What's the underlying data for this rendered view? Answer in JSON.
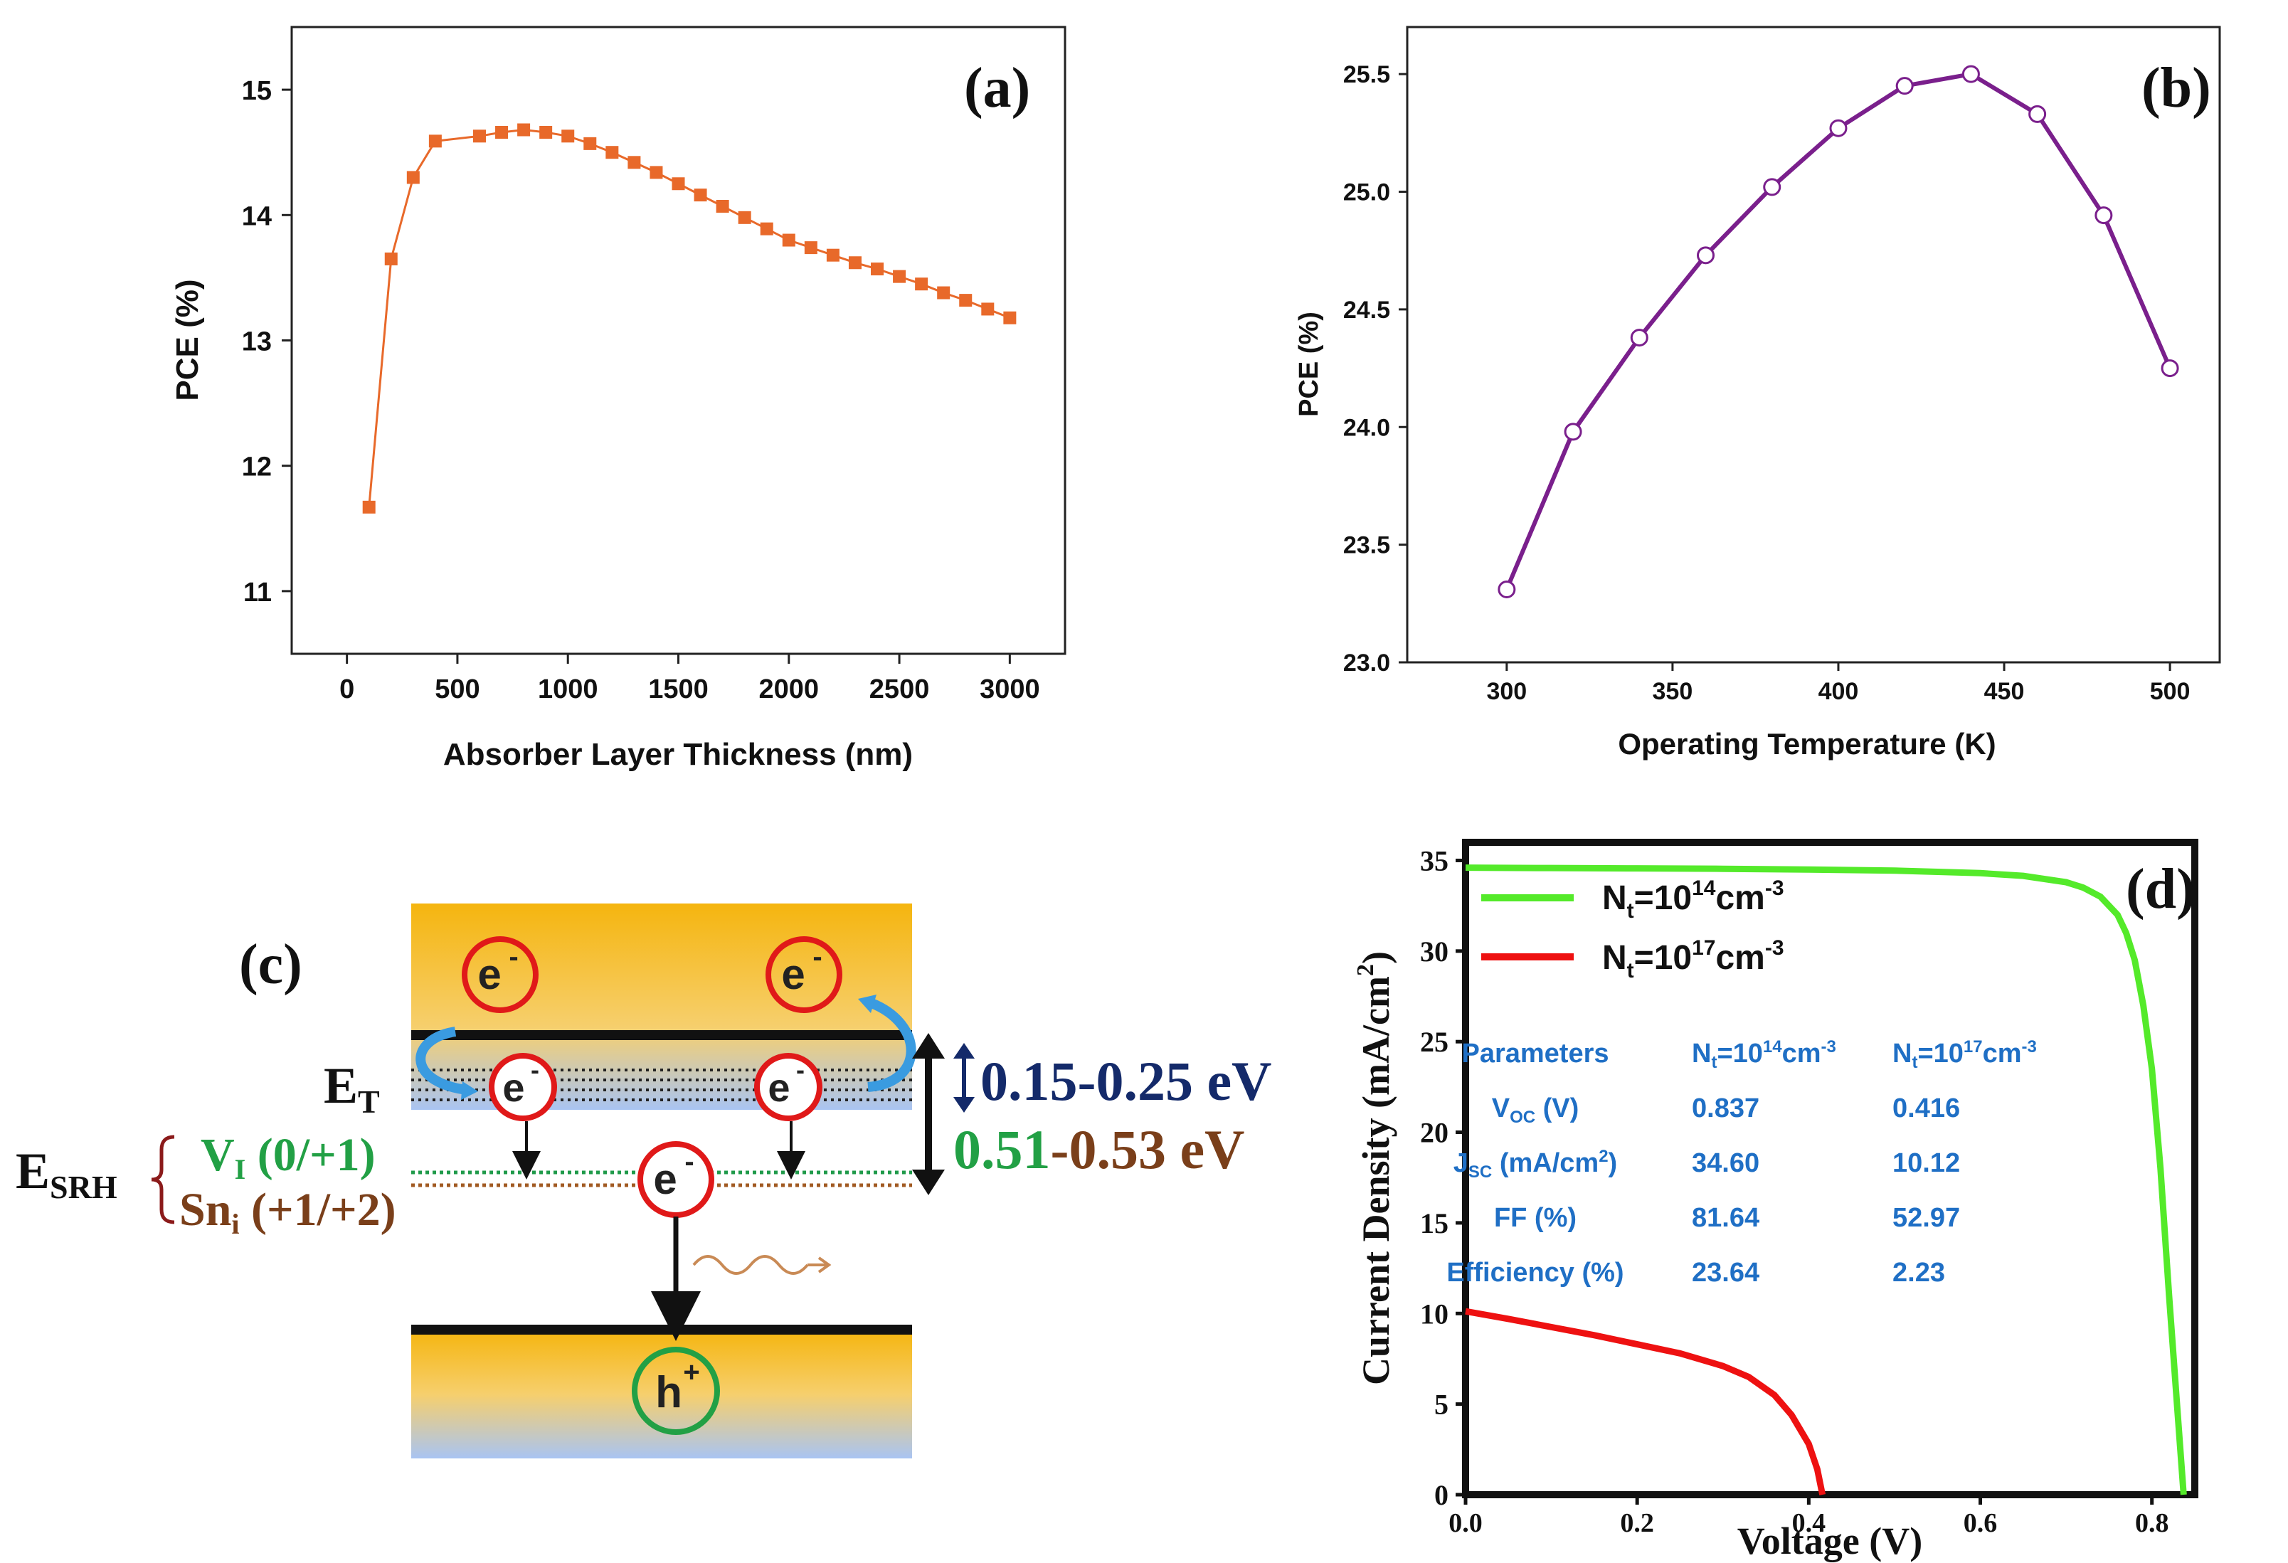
{
  "chart_data": [
    {
      "type": "line",
      "panel": "(a)",
      "xlabel": "Absorber Layer Thickness (nm)",
      "ylabel": "PCE (%)",
      "xlim": [
        -250,
        3250
      ],
      "ylim": [
        10.5,
        15.5
      ],
      "xticks": [
        0,
        500,
        1000,
        1500,
        2000,
        2500,
        3000
      ],
      "yticks": [
        11,
        12,
        13,
        14,
        15
      ],
      "color": "#e8692a",
      "x": [
        100,
        200,
        300,
        400,
        600,
        700,
        800,
        900,
        1000,
        1100,
        1200,
        1300,
        1400,
        1500,
        1600,
        1700,
        1800,
        1900,
        2000,
        2100,
        2200,
        2300,
        2400,
        2500,
        2600,
        2700,
        2800,
        2900,
        3000
      ],
      "y": [
        11.67,
        13.65,
        14.3,
        14.59,
        14.63,
        14.66,
        14.68,
        14.66,
        14.63,
        14.57,
        14.5,
        14.42,
        14.34,
        14.25,
        14.16,
        14.07,
        13.98,
        13.89,
        13.8,
        13.74,
        13.68,
        13.62,
        13.57,
        13.51,
        13.45,
        13.38,
        13.32,
        13.25,
        13.18
      ]
    },
    {
      "type": "line",
      "panel": "(b)",
      "xlabel": "Operating Temperature (K)",
      "ylabel": "PCE (%)",
      "xlim": [
        270,
        515
      ],
      "ylim": [
        23.0,
        25.7
      ],
      "xticks": [
        300,
        350,
        400,
        450,
        500
      ],
      "yticks": [
        "23.0",
        "23.5",
        "24.0",
        "24.5",
        "25.0",
        "25.5"
      ],
      "color": "#7a1f8c",
      "x": [
        300,
        320,
        340,
        360,
        380,
        400,
        420,
        440,
        460,
        480,
        500
      ],
      "y": [
        23.31,
        23.98,
        24.38,
        24.73,
        25.02,
        25.27,
        25.45,
        25.5,
        25.33,
        24.9,
        24.25
      ]
    },
    {
      "type": "line",
      "panel": "(d)",
      "xlabel": "Voltage (V)",
      "ylabel": "Current Density (mA/cm2)",
      "xlim": [
        0,
        0.85
      ],
      "ylim": [
        0,
        36
      ],
      "xticks": [
        "0.0",
        "0.2",
        "0.4",
        "0.6",
        "0.8"
      ],
      "yticks": [
        0,
        5,
        10,
        15,
        20,
        25,
        30,
        35
      ],
      "series": [
        {
          "name": "Nt=10^14 cm^-3",
          "color": "#54ea2a",
          "x": [
            0,
            0.1,
            0.2,
            0.3,
            0.4,
            0.5,
            0.6,
            0.65,
            0.7,
            0.72,
            0.74,
            0.76,
            0.77,
            0.78,
            0.79,
            0.8,
            0.81,
            0.82,
            0.83,
            0.837
          ],
          "y": [
            34.6,
            34.58,
            34.56,
            34.54,
            34.5,
            34.44,
            34.3,
            34.15,
            33.8,
            33.5,
            33.0,
            32.0,
            31.0,
            29.5,
            27.0,
            23.5,
            18.0,
            11.0,
            4.5,
            0
          ]
        },
        {
          "name": "Nt=10^17 cm^-3",
          "color": "#ee1111",
          "x": [
            0,
            0.05,
            0.1,
            0.15,
            0.2,
            0.25,
            0.3,
            0.33,
            0.36,
            0.38,
            0.4,
            0.41,
            0.416
          ],
          "y": [
            10.12,
            9.7,
            9.25,
            8.8,
            8.3,
            7.8,
            7.1,
            6.5,
            5.5,
            4.4,
            2.8,
            1.4,
            0
          ]
        }
      ]
    }
  ],
  "panel_c": {
    "label": "(c)",
    "electron": "e",
    "electron_sup": "-",
    "hole": "h",
    "hole_sup": "+",
    "et_label": "E",
    "et_sub": "T",
    "esrh_label": "E",
    "esrh_sub": "SRH",
    "vi_main": "V",
    "vi_sub": "I",
    "vi_rest": " (0/+1)",
    "sn_main": "Sn",
    "sn_sub": "i",
    "sn_rest": " (+1/+2)",
    "range1": "0.15-0.25 eV",
    "range2_a": "0.51",
    "range2_b": "-0.53 eV",
    "conduction_color": "#f5b50f",
    "valence_color": "#a9c4f2"
  },
  "panel_d_legend": {
    "label": "(d)",
    "green_main": "N",
    "green_sub": "t",
    "green_eq": "=10",
    "green_exp": "14",
    "green_unit": "cm",
    "green_unit_exp": "-3",
    "red_main": "N",
    "red_sub": "t",
    "red_eq": "=10",
    "red_exp": "17",
    "red_unit": "cm",
    "red_unit_exp": "-3",
    "ylabel_main": "Current Density (mA/cm",
    "ylabel_sup": "2",
    "ylabel_end": ")"
  },
  "panel_d_table": {
    "headers": [
      "Parameters",
      "N",
      "t",
      "=10",
      "14",
      "cm",
      "-3",
      "N",
      "t",
      "=10",
      "17",
      "cm",
      "-3"
    ],
    "rows": [
      {
        "p_main": "V",
        "p_sub": "OC",
        "p_rest": " (V)",
        "a": "0.837",
        "b": "0.416"
      },
      {
        "p_main": "J",
        "p_sub": "SC",
        "p_rest": " (mA/cm",
        "p_sup": "2",
        "p_end": ")",
        "a": "34.60",
        "b": "10.12"
      },
      {
        "p_main": "FF (%)",
        "a": "81.64",
        "b": "52.97"
      },
      {
        "p_main": "Efficiency (%)",
        "a": "23.64",
        "b": "2.23"
      }
    ]
  }
}
